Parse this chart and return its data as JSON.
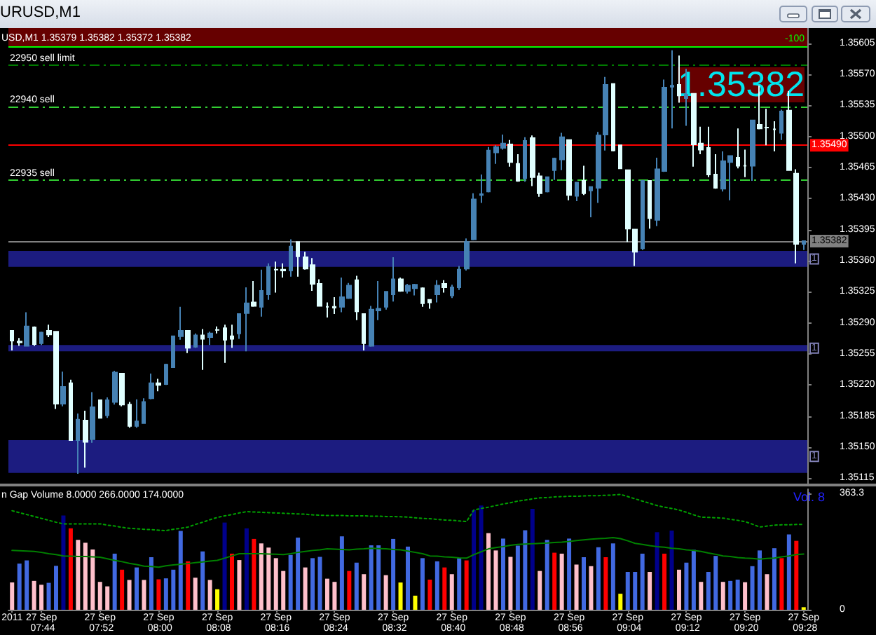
{
  "chart_data": [
    {
      "type": "candlestick",
      "title": "URUSD,M1",
      "subtitle": "USD,M1 1.35379 1.35382 1.35372 1.35382",
      "categories": [
        "2011",
        null,
        null,
        null,
        "27 Sep 07:44",
        null,
        null,
        null,
        null,
        null,
        null,
        null,
        "27 Sep 07:52",
        null,
        null,
        null,
        null,
        null,
        null,
        null,
        "27 Sep 08:00",
        null,
        null,
        null,
        null,
        null,
        null,
        null,
        "27 Sep 08:08",
        null,
        null,
        null,
        null,
        null,
        null,
        null,
        "27 Sep 08:16",
        null,
        null,
        null,
        null,
        null,
        null,
        null,
        "27 Sep 08:24",
        null,
        null,
        null,
        null,
        null,
        null,
        null,
        "27 Sep 08:32",
        null,
        null,
        null,
        null,
        null,
        null,
        null,
        "27 Sep 08:40",
        null,
        null,
        null,
        null,
        null,
        null,
        null,
        "27 Sep 08:48",
        null,
        null,
        null,
        null,
        null,
        null,
        null,
        "27 Sep 08:56",
        null,
        null,
        null,
        null,
        null,
        null,
        null,
        "27 Sep 09:04",
        null,
        null,
        null,
        null,
        null,
        null,
        null,
        "27 Sep 09:12",
        null,
        null,
        null,
        null,
        null,
        null,
        null,
        "27 Sep 09:20",
        null,
        null,
        null,
        null,
        null,
        null,
        null,
        "27 Sep 09:28"
      ],
      "ohlc": [
        [
          1.35281,
          1.35281,
          1.35259,
          1.3527
        ],
        [
          1.35269,
          1.35273,
          1.35264,
          1.35268
        ],
        [
          1.35264,
          1.35302,
          1.35264,
          1.35286
        ],
        [
          1.35285,
          1.35286,
          1.35264,
          1.35266
        ],
        [
          1.35267,
          1.3528,
          1.35265,
          1.35279
        ],
        [
          1.35281,
          1.35288,
          1.35274,
          1.35277
        ],
        [
          1.3528,
          1.3528,
          1.35193,
          1.35199
        ],
        [
          1.35199,
          1.35235,
          1.35196,
          1.35218
        ],
        [
          1.35222,
          1.35226,
          1.35158,
          1.35158
        ],
        [
          1.35158,
          1.35188,
          1.3512,
          1.35181
        ],
        [
          1.3518,
          1.35191,
          1.35127,
          1.35156
        ],
        [
          1.35159,
          1.35212,
          1.35155,
          1.35195
        ],
        [
          1.35203,
          1.35203,
          1.35183,
          1.35183
        ],
        [
          1.35186,
          1.35206,
          1.35183,
          1.35203
        ],
        [
          1.35201,
          1.35236,
          1.35198,
          1.35234
        ],
        [
          1.35233,
          1.35233,
          1.35196,
          1.35198
        ],
        [
          1.35198,
          1.35201,
          1.35172,
          1.35174
        ],
        [
          1.35174,
          1.35204,
          1.35172,
          1.35179
        ],
        [
          1.35177,
          1.35205,
          1.35177,
          1.35201
        ],
        [
          1.35205,
          1.35233,
          1.35204,
          1.35222
        ],
        [
          1.35222,
          1.35227,
          1.35213,
          1.3522
        ],
        [
          1.35221,
          1.35244,
          1.3522,
          1.35243
        ],
        [
          1.3524,
          1.35275,
          1.3524,
          1.35275
        ],
        [
          1.35275,
          1.35308,
          1.35271,
          1.35281
        ],
        [
          1.35281,
          1.35281,
          1.35256,
          1.35262
        ],
        [
          1.35263,
          1.35278,
          1.35262,
          1.35276
        ],
        [
          1.35276,
          1.35283,
          1.35237,
          1.35272
        ],
        [
          1.35274,
          1.3528,
          1.35265,
          1.35278
        ],
        [
          1.35282,
          1.35286,
          1.35278,
          1.35282
        ],
        [
          1.35284,
          1.35288,
          1.35245,
          1.35271
        ],
        [
          1.35275,
          1.35288,
          1.35262,
          1.35272
        ],
        [
          1.35278,
          1.353,
          1.35272,
          1.353
        ],
        [
          1.35301,
          1.3533,
          1.35258,
          1.35312
        ],
        [
          1.35313,
          1.35337,
          1.35308,
          1.35309
        ],
        [
          1.35308,
          1.3535,
          1.35297,
          1.35326
        ],
        [
          1.35322,
          1.35357,
          1.35316,
          1.35353
        ],
        [
          1.3535,
          1.35359,
          1.35324,
          1.3535
        ],
        [
          1.3535,
          1.35357,
          1.35341,
          1.35349
        ],
        [
          1.35349,
          1.35384,
          1.35342,
          1.35376
        ],
        [
          1.35381,
          1.35381,
          1.35342,
          1.35365
        ],
        [
          1.35364,
          1.3537,
          1.3535,
          1.35351
        ],
        [
          1.35355,
          1.35363,
          1.35326,
          1.35334
        ],
        [
          1.35334,
          1.35339,
          1.35309,
          1.35309
        ],
        [
          1.35308,
          1.35313,
          1.35296,
          1.35308
        ],
        [
          1.35308,
          1.35319,
          1.353,
          1.35307
        ],
        [
          1.35308,
          1.35341,
          1.35302,
          1.35319
        ],
        [
          1.35318,
          1.35335,
          1.35317,
          1.35332
        ],
        [
          1.35338,
          1.35343,
          1.35293,
          1.35303
        ],
        [
          1.353,
          1.353,
          1.35259,
          1.35267
        ],
        [
          1.35264,
          1.35309,
          1.35263,
          1.35305
        ],
        [
          1.35304,
          1.35337,
          1.35293,
          1.35306
        ],
        [
          1.35308,
          1.35325,
          1.35305,
          1.35325
        ],
        [
          1.35322,
          1.35364,
          1.35314,
          1.35339
        ],
        [
          1.35339,
          1.35341,
          1.35325,
          1.35326
        ],
        [
          1.35326,
          1.35334,
          1.35323,
          1.35332
        ],
        [
          1.35329,
          1.35334,
          1.35321,
          1.35333
        ],
        [
          1.35329,
          1.3533,
          1.35308,
          1.35312
        ],
        [
          1.35316,
          1.35316,
          1.35306,
          1.35313
        ],
        [
          1.35322,
          1.35338,
          1.35313,
          1.35332
        ],
        [
          1.35334,
          1.35338,
          1.35324,
          1.3533
        ],
        [
          1.35321,
          1.35333,
          1.35318,
          1.3533
        ],
        [
          1.3533,
          1.35354,
          1.35327,
          1.3535
        ],
        [
          1.35351,
          1.35385,
          1.35349,
          1.35381
        ],
        [
          1.35384,
          1.35436,
          1.35383,
          1.35429
        ],
        [
          1.35434,
          1.35457,
          1.35425,
          1.35435
        ],
        [
          1.35438,
          1.35488,
          1.35437,
          1.35484
        ],
        [
          1.35482,
          1.3549,
          1.35469,
          1.35488
        ],
        [
          1.35487,
          1.35502,
          1.35485,
          1.35492
        ],
        [
          1.35491,
          1.35496,
          1.35466,
          1.35471
        ],
        [
          1.35469,
          1.3548,
          1.35449,
          1.3545
        ],
        [
          1.35453,
          1.35499,
          1.35449,
          1.35495
        ],
        [
          1.35498,
          1.35501,
          1.35444,
          1.35454
        ],
        [
          1.35455,
          1.35459,
          1.35432,
          1.35436
        ],
        [
          1.35438,
          1.35454,
          1.35437,
          1.35454
        ],
        [
          1.35462,
          1.35476,
          1.35451,
          1.35475
        ],
        [
          1.35474,
          1.35504,
          1.35462,
          1.35499
        ],
        [
          1.35496,
          1.35496,
          1.35428,
          1.35434
        ],
        [
          1.35433,
          1.35448,
          1.35427,
          1.35448
        ],
        [
          1.3545,
          1.35467,
          1.35434,
          1.35436
        ],
        [
          1.35439,
          1.35443,
          1.35409,
          1.35443
        ],
        [
          1.35442,
          1.35505,
          1.35425,
          1.35501
        ],
        [
          1.35502,
          1.35567,
          1.35484,
          1.35558
        ],
        [
          1.35559,
          1.35559,
          1.35483,
          1.35484
        ],
        [
          1.3549,
          1.3549,
          1.35464,
          1.35464
        ],
        [
          1.35462,
          1.35462,
          1.35381,
          1.35396
        ],
        [
          1.35395,
          1.35395,
          1.35354,
          1.3537
        ],
        [
          1.35374,
          1.3545,
          1.35372,
          1.3545
        ],
        [
          1.3545,
          1.3545,
          1.35396,
          1.35408
        ],
        [
          1.35406,
          1.35476,
          1.35399,
          1.35463
        ],
        [
          1.35461,
          1.35564,
          1.3546,
          1.35555
        ],
        [
          1.35556,
          1.35597,
          1.35509,
          1.35557
        ],
        [
          1.35558,
          1.35591,
          1.35538,
          1.35546
        ],
        [
          1.35543,
          1.35576,
          1.35512,
          1.35547
        ],
        [
          1.35548,
          1.35548,
          1.35466,
          1.35491
        ],
        [
          1.35492,
          1.35511,
          1.3548,
          1.35485
        ],
        [
          1.35487,
          1.35511,
          1.35454,
          1.35457
        ],
        [
          1.35457,
          1.3548,
          1.35441,
          1.35442
        ],
        [
          1.35441,
          1.35483,
          1.35438,
          1.35472
        ],
        [
          1.35471,
          1.35478,
          1.35428,
          1.35478
        ],
        [
          1.35476,
          1.35509,
          1.35464,
          1.35467
        ],
        [
          1.35467,
          1.35485,
          1.35454,
          1.35467
        ],
        [
          1.35467,
          1.35518,
          1.3545,
          1.35518
        ],
        [
          1.35513,
          1.35557,
          1.35508,
          1.35509
        ],
        [
          1.3551,
          1.35531,
          1.3549,
          1.3551
        ],
        [
          1.35508,
          1.35517,
          1.35483,
          1.35508
        ],
        [
          1.35504,
          1.3553,
          1.35496,
          1.35528
        ],
        [
          1.35529,
          1.35551,
          1.35462,
          1.35462
        ],
        [
          1.35458,
          1.35463,
          1.35357,
          1.35379
        ],
        [
          1.35379,
          1.35382,
          1.35372,
          1.35382
        ]
      ],
      "colors": [
        "#e0ffff",
        "#e0ffff",
        "#4682b4",
        "#e0ffff",
        "#4682b4",
        "#e0ffff",
        "#e0ffff",
        "#4682b4",
        "#e0ffff",
        "#4682b4",
        "#e0ffff",
        "#4682b4",
        "#e0ffff",
        "#4682b4",
        "#4682b4",
        "#e0ffff",
        "#e0ffff",
        "#4682b4",
        "#4682b4",
        "#4682b4",
        "#e0ffff",
        "#4682b4",
        "#4682b4",
        "#4682b4",
        "#e0ffff",
        "#4682b4",
        "#e0ffff",
        "#4682b4",
        "#e0ffff",
        "#e0ffff",
        "#e0ffff",
        "#4682b4",
        "#4682b4",
        "#e0ffff",
        "#4682b4",
        "#4682b4",
        "#e0ffff",
        "#e0ffff",
        "#4682b4",
        "#e0ffff",
        "#e0ffff",
        "#e0ffff",
        "#e0ffff",
        "#e0ffff",
        "#e0ffff",
        "#4682b4",
        "#4682b4",
        "#e0ffff",
        "#e0ffff",
        "#4682b4",
        "#4682b4",
        "#4682b4",
        "#4682b4",
        "#e0ffff",
        "#4682b4",
        "#4682b4",
        "#e0ffff",
        "#e0ffff",
        "#4682b4",
        "#e0ffff",
        "#4682b4",
        "#4682b4",
        "#4682b4",
        "#4682b4",
        "#4682b4",
        "#4682b4",
        "#4682b4",
        "#4682b4",
        "#e0ffff",
        "#e0ffff",
        "#4682b4",
        "#e0ffff",
        "#e0ffff",
        "#4682b4",
        "#4682b4",
        "#4682b4",
        "#e0ffff",
        "#4682b4",
        "#e0ffff",
        "#4682b4",
        "#4682b4",
        "#4682b4",
        "#e0ffff",
        "#e0ffff",
        "#e0ffff",
        "#e0ffff",
        "#4682b4",
        "#e0ffff",
        "#4682b4",
        "#4682b4",
        "#4682b4",
        "#e0ffff",
        "#4682b4",
        "#e0ffff",
        "#e0ffff",
        "#e0ffff",
        "#e0ffff",
        "#4682b4",
        "#4682b4",
        "#e0ffff",
        "#e0ffff",
        "#4682b4",
        "#e0ffff",
        "#e0ffff",
        "#e0ffff",
        "#4682b4",
        "#e0ffff",
        "#e0ffff",
        "#4682b4"
      ],
      "ylim": [
        1.35109,
        1.35622
      ],
      "yticks": [
        1.35115,
        {
          "value": 1.3515,
          "label": "1.35150"
        },
        1.35185,
        {
          "value": 1.3522,
          "label": "1.35220"
        },
        1.35255,
        {
          "value": 1.3529,
          "label": "1.35290"
        },
        1.35325,
        {
          "value": 1.3536,
          "label": "1.35360"
        },
        1.35395,
        {
          "value": 1.3543,
          "label": "1.35430"
        },
        1.35465,
        {
          "value": 1.355,
          "label": "1.35500"
        },
        1.35535,
        {
          "value": 1.3557,
          "label": "1.35570"
        },
        1.35605
      ],
      "tick_labels": "y",
      "ref_lines": [
        {
          "axis": "y",
          "value": 1.35601,
          "color": "#00ff00",
          "line_style": "solid"
        },
        {
          "axis": "y",
          "value": 1.3558,
          "label": "22950 sell limit",
          "color": "#007a00",
          "line_style": "dashed"
        },
        {
          "axis": "y",
          "value": 1.35534,
          "label": "22940 sell",
          "color": "#32cd32",
          "line_style": "dashed"
        },
        {
          "axis": "y",
          "value": 1.3549,
          "label": "1.35490",
          "color": "#ff0000",
          "line_style": "solid"
        },
        {
          "axis": "y",
          "value": 1.35451,
          "label": "22935 sell",
          "color": "#32cd32",
          "line_style": "dashed"
        },
        {
          "axis": "y",
          "value": 1.35382,
          "label": "1.35382",
          "color": "#808080",
          "line_style": "solid"
        }
      ],
      "bands": [
        {
          "axis": "y",
          "from": 1.35601,
          "to": 1.35622,
          "color": "#660000"
        },
        {
          "axis": "y",
          "from": 1.35353,
          "to": 1.35371,
          "label": "1",
          "color": "#1c1c80"
        },
        {
          "axis": "y",
          "from": 1.35258,
          "to": 1.35265,
          "label": "1",
          "color": "#1c1c80"
        },
        {
          "axis": "y",
          "from": 1.35121,
          "to": 1.35158,
          "label": "1",
          "color": "#1c1c80"
        }
      ],
      "annotations": [
        "1.35382",
        {
          "text": "-100",
          "y": 1.35601
        }
      ]
    },
    {
      "type": "bar",
      "title": "n Gap Volume 8.0000 266.0000 174.0000",
      "categories": [
        "2011",
        null,
        null,
        null,
        "27 Sep 07:44",
        null,
        null,
        null,
        null,
        null,
        null,
        null,
        "27 Sep 07:52",
        null,
        null,
        null,
        null,
        null,
        null,
        null,
        "27 Sep 08:00",
        null,
        null,
        null,
        null,
        null,
        null,
        null,
        "27 Sep 08:08",
        null,
        null,
        null,
        null,
        null,
        null,
        null,
        "27 Sep 08:16",
        null,
        null,
        null,
        null,
        null,
        null,
        null,
        "27 Sep 08:24",
        null,
        null,
        null,
        null,
        null,
        null,
        null,
        "27 Sep 08:32",
        null,
        null,
        null,
        null,
        null,
        null,
        null,
        "27 Sep 08:40",
        null,
        null,
        null,
        null,
        null,
        null,
        null,
        "27 Sep 08:48",
        null,
        null,
        null,
        null,
        null,
        null,
        null,
        "27 Sep 08:56",
        null,
        null,
        null,
        null,
        null,
        null,
        null,
        "27 Sep 09:04",
        null,
        null,
        null,
        null,
        null,
        null,
        null,
        "27 Sep 09:12",
        null,
        null,
        null,
        null,
        null,
        null,
        null,
        "27 Sep 09:20",
        null,
        null,
        null,
        null,
        null,
        null,
        null,
        "27 Sep 09:28"
      ],
      "series": [
        {
          "values": [
            85,
            144,
            154,
            90,
            78,
            84,
            137,
            294,
            254,
            218,
            209,
            188,
            87,
            73,
            175,
            125,
            93,
            132,
            93,
            164,
            95,
            98,
            125,
            246,
            151,
            100,
            182,
            93,
            64,
            272,
            175,
            155,
            254,
            221,
            207,
            194,
            161,
            121,
            171,
            225,
            132,
            161,
            165,
            97,
            87,
            229,
            121,
            147,
            111,
            201,
            201,
            108,
            221,
            85,
            197,
            44,
            161,
            94,
            151,
            132,
            111,
            161,
            154,
            311,
            325,
            239,
            185,
            222,
            165,
            200,
            248,
            315,
            121,
            218,
            178,
            175,
            222,
            141,
            164,
            136,
            195,
            164,
            207,
            50,
            118,
            118,
            175,
            118,
            242,
            175,
            247,
            125,
            147,
            187,
            87,
            118,
            168,
            87,
            90,
            94,
            86,
            136,
            185,
            111,
            192,
            161,
            235,
            215,
            8
          ],
          "colors": [
            "#ffc0cb",
            "#4169e1",
            "#4169e1",
            "#ffc0cb",
            "#ffc0cb",
            "#4169e1",
            "#4169e1",
            "#00008b",
            "#ff0000",
            "#ffc0cb",
            "#ffc0cb",
            "#ffc0cb",
            "#ffc0cb",
            "#ffc0cb",
            "#4169e1",
            "#ff0000",
            "#ffc0cb",
            "#4169e1",
            "#ffc0cb",
            "#4169e1",
            "#ff0000",
            "#4169e1",
            "#4169e1",
            "#4169e1",
            "#ff0000",
            "#ffc0cb",
            "#4169e1",
            "#ffc0cb",
            "#ffff00",
            "#00008b",
            "#ff0000",
            "#ffc0cb",
            "#00008b",
            "#ff0000",
            "#ffc0cb",
            "#ffc0cb",
            "#ffc0cb",
            "#ffc0cb",
            "#4169e1",
            "#4169e1",
            "#ffc0cb",
            "#4169e1",
            "#4169e1",
            "#ffc0cb",
            "#ffc0cb",
            "#4169e1",
            "#ff0000",
            "#4169e1",
            "#ffc0cb",
            "#4169e1",
            "#4169e1",
            "#ffc0cb",
            "#4169e1",
            "#ffff00",
            "#4169e1",
            "#ffff00",
            "#4169e1",
            "#ff0000",
            "#4169e1",
            "#ff0000",
            "#ffc0cb",
            "#4169e1",
            "#ff0000",
            "#00008b",
            "#00008b",
            "#ffc0cb",
            "#ffc0cb",
            "#4169e1",
            "#ffc0cb",
            "#4169e1",
            "#4169e1",
            "#00008b",
            "#ffc0cb",
            "#4169e1",
            "#ff0000",
            "#ffc0cb",
            "#4169e1",
            "#ffc0cb",
            "#4169e1",
            "#ffc0cb",
            "#4169e1",
            "#ff0000",
            "#4169e1",
            "#ffff00",
            "#4169e1",
            "#4169e1",
            "#4169e1",
            "#ffc0cb",
            "#00008b",
            "#ff0000",
            "#00008b",
            "#ffc0cb",
            "#4169e1",
            "#4169e1",
            "#ffc0cb",
            "#4169e1",
            "#4169e1",
            "#ffc0cb",
            "#4169e1",
            "#4169e1",
            "#ffc0cb",
            "#4169e1",
            "#4169e1",
            "#ffc0cb",
            "#4169e1",
            "#ff0000",
            "#4169e1",
            "#ff0000",
            "#ffff00"
          ]
        },
        {
          "type": "line",
          "color": "#00a000",
          "line_style": "dotted",
          "values": [
            309,
            303,
            297,
            291,
            285,
            279,
            273,
            268,
            268,
            268,
            268,
            268,
            268,
            264,
            261,
            257,
            254,
            253,
            251,
            250,
            248,
            247,
            251,
            254,
            258,
            266,
            273,
            281,
            288,
            293,
            297,
            302,
            306,
            305,
            304,
            303,
            302,
            301,
            300,
            299,
            298,
            296,
            295,
            294,
            294,
            294,
            293,
            293,
            293,
            292,
            292,
            291,
            291,
            290,
            289,
            287,
            285,
            284,
            282,
            280,
            279,
            277,
            275,
            311,
            316,
            320,
            325,
            330,
            334,
            339,
            342,
            346,
            349,
            350,
            352,
            353,
            354,
            354,
            355,
            356,
            356,
            357,
            358,
            360,
            353,
            346,
            339,
            332,
            325,
            320,
            316,
            311,
            304,
            296,
            289,
            288,
            287,
            286,
            282,
            279,
            275,
            267,
            258,
            261,
            264,
            265,
            265,
            266,
            266
          ]
        },
        {
          "type": "line",
          "color": "#008000",
          "line_style": "solid",
          "values": [
            185,
            184,
            183,
            182,
            179,
            175,
            172,
            168,
            167,
            166,
            166,
            165,
            164,
            159,
            154,
            150,
            145,
            141,
            136,
            135,
            133,
            137,
            140,
            142,
            144,
            147,
            149,
            152,
            154,
            161,
            168,
            175,
            175,
            175,
            175,
            174,
            173,
            172,
            175,
            179,
            182,
            185,
            187,
            190,
            189,
            188,
            187,
            189,
            190,
            192,
            191,
            190,
            188,
            187,
            183,
            179,
            175,
            168,
            167,
            165,
            164,
            162,
            161,
            172,
            181,
            190,
            194,
            197,
            201,
            204,
            205,
            206,
            207,
            208,
            210,
            211,
            213,
            216,
            218,
            220,
            222,
            223,
            225,
            222,
            215,
            207,
            204,
            200,
            197,
            195,
            192,
            190,
            187,
            185,
            182,
            177,
            173,
            168,
            166,
            163,
            161,
            160,
            158,
            160,
            161,
            165,
            168,
            172,
            174
          ]
        }
      ],
      "ylim": [
        0,
        376
      ],
      "yticks": [
        0,
        363.3
      ],
      "marker": "none",
      "annotations": [
        "Vol. 8"
      ]
    }
  ]
}
